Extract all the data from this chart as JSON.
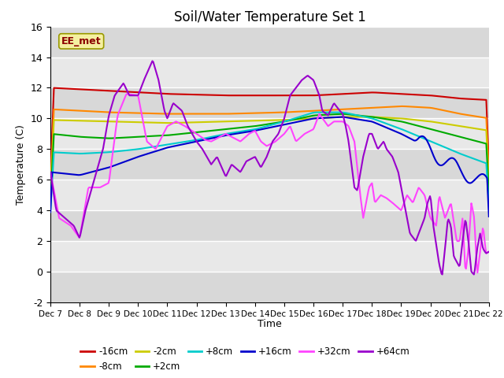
{
  "title": "Soil/Water Temperature Set 1",
  "xlabel": "Time",
  "ylabel": "Temperature (C)",
  "ylim": [
    -2,
    16
  ],
  "yticks": [
    -2,
    0,
    2,
    4,
    6,
    8,
    10,
    12,
    14,
    16
  ],
  "xlim": [
    0,
    15
  ],
  "x_tick_labels": [
    "Dec 7",
    "Dec 8",
    "Dec 9",
    "Dec 10",
    "Dec 11",
    "Dec 12",
    "Dec 13",
    "Dec 14",
    "Dec 15",
    "Dec 16",
    "Dec 17",
    "Dec 18",
    "Dec 19",
    "Dec 20",
    "Dec 21",
    "Dec 22"
  ],
  "series": {
    "-16cm": {
      "color": "#cc0000",
      "lw": 1.5
    },
    "-8cm": {
      "color": "#ff8800",
      "lw": 1.5
    },
    "-2cm": {
      "color": "#cccc00",
      "lw": 1.5
    },
    "+2cm": {
      "color": "#00aa00",
      "lw": 1.5
    },
    "+8cm": {
      "color": "#00cccc",
      "lw": 1.5
    },
    "+16cm": {
      "color": "#0000cc",
      "lw": 1.5
    },
    "+32cm": {
      "color": "#ff44ff",
      "lw": 1.5
    },
    "+64cm": {
      "color": "#9900cc",
      "lw": 1.5
    }
  },
  "watermark_text": "EE_met",
  "watermark_color": "#8b0000",
  "watermark_bg": "#f5f0a0",
  "band_dark": "#d8d8d8",
  "band_light": "#e8e8e8"
}
